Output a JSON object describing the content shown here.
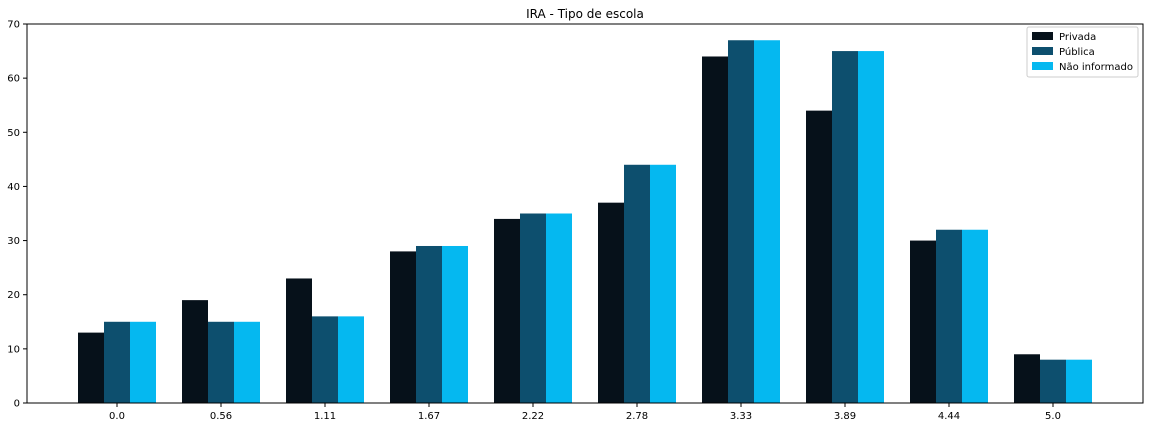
{
  "chart_data": {
    "type": "bar",
    "title": "IRA - Tipo de escola",
    "xlabel": "",
    "ylabel": "",
    "categories": [
      "0.0",
      "0.56",
      "1.11",
      "1.67",
      "2.22",
      "2.78",
      "3.33",
      "3.89",
      "4.44",
      "5.0"
    ],
    "yticks": [
      "0",
      "10",
      "20",
      "30",
      "40",
      "50",
      "60",
      "70"
    ],
    "ylim": [
      0,
      70
    ],
    "grid": false,
    "legend_position": "top-right",
    "series": [
      {
        "name": "Privada",
        "color": "#06111a",
        "values": [
          13,
          19,
          23,
          28,
          34,
          37,
          64,
          54,
          30,
          9
        ]
      },
      {
        "name": "Pública",
        "color": "#0d4f6e",
        "values": [
          15,
          15,
          16,
          29,
          35,
          44,
          67,
          65,
          32,
          8
        ]
      },
      {
        "name": "Não informado",
        "color": "#05b8f0",
        "values": [
          15,
          15,
          16,
          29,
          35,
          44,
          67,
          65,
          32,
          8
        ]
      }
    ]
  }
}
